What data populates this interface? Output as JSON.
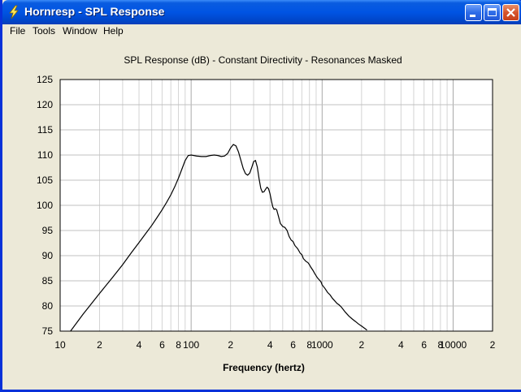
{
  "window": {
    "title": "Hornresp - SPL Response"
  },
  "menu": {
    "items": [
      "File",
      "Tools",
      "Window",
      "Help"
    ]
  },
  "icons": {
    "app": "lightning-bolt-icon",
    "minimize": "minimize-icon",
    "maximize": "maximize-icon",
    "close": "close-icon"
  },
  "colors": {
    "titlebar": "#0054E3",
    "close_button": "#D6542C",
    "plot_background": "#FFFFFF",
    "curve": "#000000",
    "grid": "#C8C8C8"
  },
  "chart_data": {
    "type": "line",
    "title": "SPL Response (dB) - Constant Directivity - Resonances Masked",
    "xlabel": "Frequency (hertz)",
    "ylabel": "",
    "x_scale": "log",
    "xlim": [
      10,
      20000
    ],
    "ylim": [
      75,
      125
    ],
    "grid": true,
    "y_ticks": [
      "125",
      "120",
      "115",
      "110",
      "105",
      "100",
      "95",
      "90",
      "85",
      "80",
      "75"
    ],
    "x_ticks": [
      {
        "value": 10,
        "label": "10"
      },
      {
        "value": 20,
        "label": "2"
      },
      {
        "value": 40,
        "label": "4"
      },
      {
        "value": 60,
        "label": "6"
      },
      {
        "value": 80,
        "label": "8"
      },
      {
        "value": 100,
        "label": "100"
      },
      {
        "value": 200,
        "label": "2"
      },
      {
        "value": 400,
        "label": "4"
      },
      {
        "value": 600,
        "label": "6"
      },
      {
        "value": 800,
        "label": "8"
      },
      {
        "value": 1000,
        "label": "1000"
      },
      {
        "value": 2000,
        "label": "2"
      },
      {
        "value": 4000,
        "label": "4"
      },
      {
        "value": 6000,
        "label": "6"
      },
      {
        "value": 8000,
        "label": "8"
      },
      {
        "value": 10000,
        "label": "10000"
      },
      {
        "value": 20000,
        "label": "2"
      }
    ],
    "series": [
      {
        "x": [
          12,
          15,
          20,
          25,
          30,
          35,
          40,
          45,
          50,
          55,
          60,
          65,
          70,
          75,
          80,
          85,
          90,
          95,
          100,
          110,
          120,
          130,
          140,
          150,
          160,
          170,
          180,
          190,
          200,
          210,
          220,
          230,
          240,
          250,
          260,
          270,
          280,
          290,
          300,
          310,
          320,
          330,
          340,
          350,
          360,
          370,
          380,
          390,
          400,
          410,
          420,
          430,
          440,
          450,
          460,
          480,
          500,
          520,
          540,
          560,
          580,
          600,
          620,
          650,
          680,
          700,
          720,
          750,
          780,
          800,
          820,
          850,
          880,
          900,
          920,
          950,
          980,
          1000,
          1050,
          1100,
          1150,
          1200,
          1250,
          1300,
          1350,
          1400,
          1500,
          1600,
          1700,
          1800,
          1900,
          2000,
          2100,
          2200
        ],
        "y": [
          75.0,
          78.4,
          82.5,
          85.6,
          88.2,
          90.6,
          92.6,
          94.4,
          96.0,
          97.6,
          99.1,
          100.6,
          102.1,
          103.7,
          105.4,
          107.2,
          108.9,
          109.9,
          110.0,
          109.8,
          109.7,
          109.7,
          109.9,
          110.0,
          109.9,
          109.7,
          109.8,
          110.3,
          111.4,
          112.1,
          111.8,
          110.6,
          108.9,
          107.3,
          106.3,
          106.0,
          106.4,
          107.5,
          108.7,
          108.9,
          107.6,
          105.3,
          103.4,
          102.6,
          102.7,
          103.2,
          103.6,
          103.3,
          102.3,
          100.9,
          99.7,
          99.2,
          99.3,
          99.1,
          98.2,
          96.4,
          95.8,
          95.6,
          95.0,
          93.8,
          93.1,
          92.8,
          92.0,
          91.4,
          90.5,
          90.2,
          89.4,
          88.9,
          88.6,
          88.2,
          87.7,
          87.1,
          86.4,
          86.0,
          85.6,
          85.2,
          84.8,
          84.2,
          83.5,
          82.7,
          82.2,
          81.5,
          81.0,
          80.5,
          80.2,
          79.8,
          78.8,
          78.0,
          77.4,
          76.9,
          76.4,
          76.0,
          75.6,
          75.2
        ]
      }
    ]
  }
}
